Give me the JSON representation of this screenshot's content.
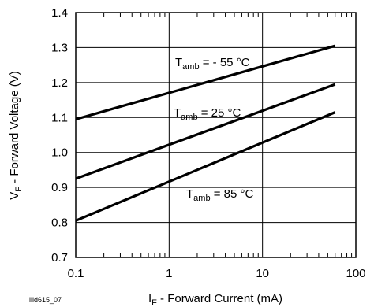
{
  "chart_data": {
    "type": "line",
    "figure_id": "iild615_07",
    "xlabel": {
      "main": "I",
      "sub": "F",
      "rest": " - Forward Current (mA)"
    },
    "ylabel": {
      "main": "V",
      "sub": "F",
      "rest": " - Forward Voltage (V)"
    },
    "xscale": "log",
    "xlim": [
      0.1,
      100
    ],
    "ylim": [
      0.7,
      1.4
    ],
    "xticks": [
      "0.1",
      "1",
      "10",
      "100"
    ],
    "yticks": [
      "0.7",
      "0.8",
      "0.9",
      "1.0",
      "1.1",
      "1.2",
      "1.3",
      "1.4"
    ],
    "grid": true,
    "series": [
      {
        "name": {
          "main": "T",
          "sub": "amb",
          "rest": " = - 55 °C"
        },
        "x": [
          0.1,
          60
        ],
        "y": [
          1.095,
          1.305
        ]
      },
      {
        "name": {
          "main": "T",
          "sub": "amb",
          "rest": " = 25 °C"
        },
        "x": [
          0.1,
          60
        ],
        "y": [
          0.925,
          1.195
        ]
      },
      {
        "name": {
          "main": "T",
          "sub": "amb",
          "rest": " = 85 °C"
        },
        "x": [
          0.1,
          60
        ],
        "y": [
          0.805,
          1.115
        ]
      }
    ]
  }
}
